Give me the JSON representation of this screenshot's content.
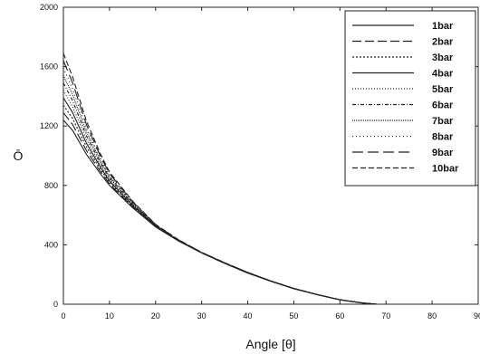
{
  "chart_data": {
    "type": "line",
    "xlabel": "Angle [θ]",
    "ylabel": "Ō",
    "xlim": [
      0,
      90
    ],
    "ylim": [
      0,
      2000
    ],
    "xticks": [
      "0",
      "10",
      "20",
      "30",
      "40",
      "50",
      "60",
      "70",
      "80",
      "90"
    ],
    "yticks": [
      "0",
      "400",
      "800",
      "1200",
      "1600",
      "2000"
    ],
    "xtick_values": [
      0,
      10,
      20,
      30,
      40,
      50,
      60,
      70,
      80,
      90
    ],
    "ytick_values": [
      0,
      400,
      800,
      1200,
      1600,
      2000
    ],
    "grid": false,
    "legend_position": "top-right",
    "x": [
      0,
      2,
      5,
      8,
      10,
      15,
      20,
      25,
      30,
      35,
      40,
      45,
      50,
      55,
      60,
      65,
      68
    ],
    "series": [
      {
        "name": "1bar",
        "dash": "",
        "values": [
          1240,
          1170,
          1010,
          880,
          800,
          650,
          520,
          425,
          345,
          275,
          210,
          155,
          105,
          65,
          30,
          8,
          0
        ]
      },
      {
        "name": "2bar",
        "dash": "10,4",
        "values": [
          1290,
          1210,
          1035,
          895,
          810,
          655,
          522,
          426,
          345,
          275,
          210,
          155,
          105,
          65,
          30,
          8,
          0
        ]
      },
      {
        "name": "3bar",
        "dash": "2,2",
        "values": [
          1340,
          1250,
          1060,
          910,
          820,
          660,
          524,
          427,
          346,
          276,
          211,
          155,
          105,
          65,
          30,
          8,
          0
        ]
      },
      {
        "name": "4bar",
        "dash": "",
        "values": [
          1390,
          1290,
          1085,
          925,
          830,
          665,
          526,
          428,
          346,
          276,
          211,
          155,
          105,
          65,
          30,
          8,
          0
        ]
      },
      {
        "name": "5bar",
        "dash": "1,2",
        "values": [
          1440,
          1330,
          1110,
          940,
          840,
          670,
          528,
          429,
          347,
          277,
          212,
          156,
          106,
          65,
          30,
          8,
          0
        ]
      },
      {
        "name": "6bar",
        "dash": "4,2,1,2",
        "values": [
          1490,
          1370,
          1135,
          955,
          850,
          675,
          530,
          430,
          347,
          277,
          212,
          156,
          106,
          65,
          30,
          8,
          0
        ]
      },
      {
        "name": "7bar",
        "dash": "1,1",
        "values": [
          1540,
          1410,
          1160,
          970,
          860,
          680,
          532,
          431,
          348,
          278,
          213,
          156,
          106,
          65,
          30,
          8,
          0
        ]
      },
      {
        "name": "8bar",
        "dash": "1,3",
        "values": [
          1590,
          1450,
          1185,
          985,
          870,
          685,
          534,
          432,
          348,
          278,
          213,
          157,
          106,
          65,
          30,
          8,
          0
        ]
      },
      {
        "name": "9bar",
        "dash": "12,5",
        "values": [
          1640,
          1490,
          1210,
          1000,
          880,
          690,
          536,
          433,
          349,
          279,
          214,
          157,
          107,
          65,
          30,
          8,
          0
        ]
      },
      {
        "name": "10bar",
        "dash": "6,3",
        "values": [
          1690,
          1530,
          1235,
          1015,
          890,
          695,
          538,
          434,
          349,
          279,
          214,
          157,
          107,
          65,
          30,
          8,
          0
        ]
      }
    ]
  }
}
